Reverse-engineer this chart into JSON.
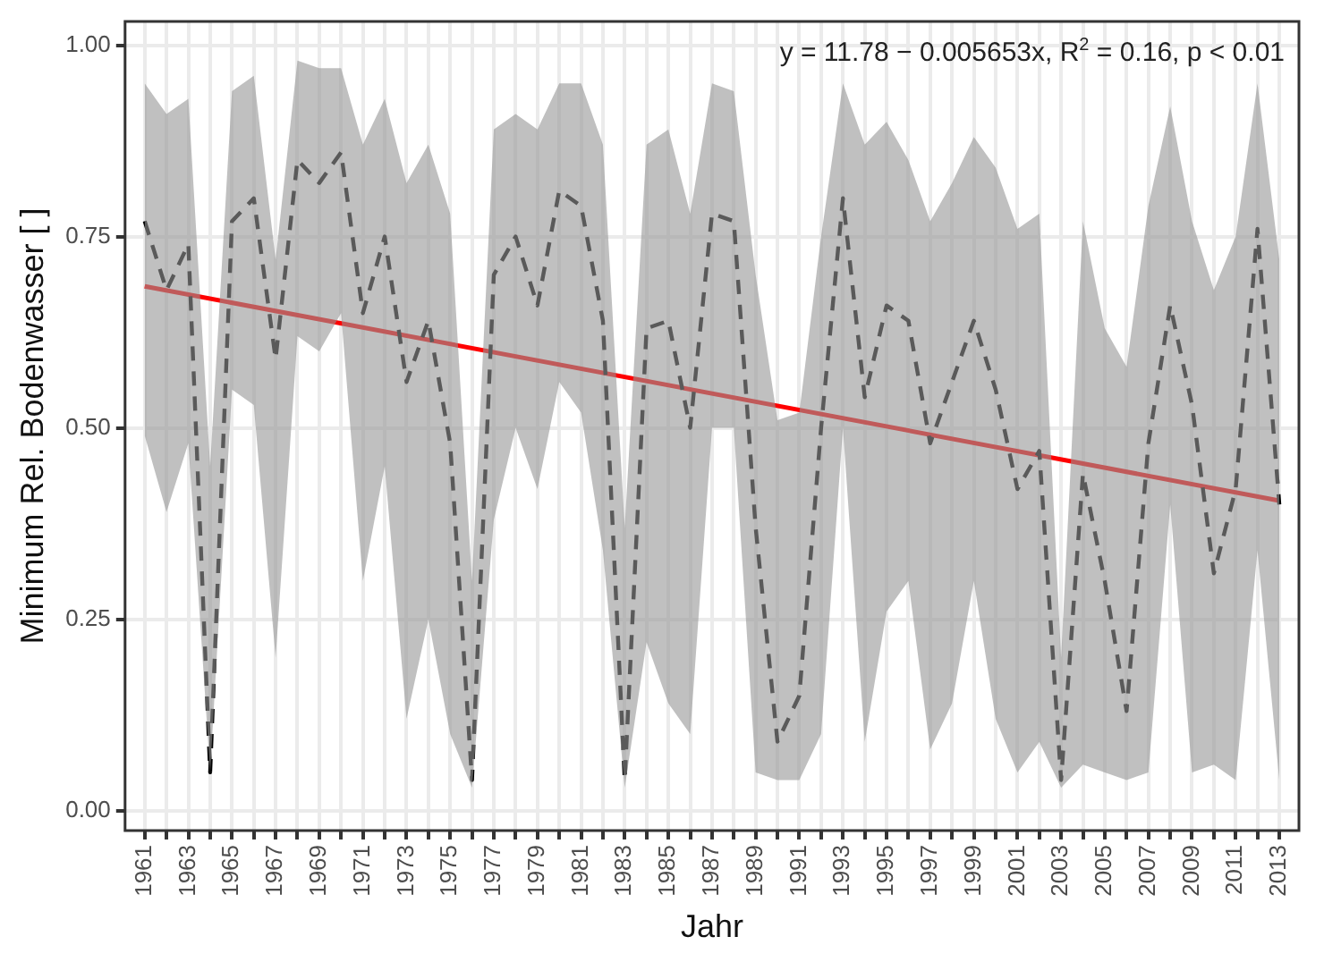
{
  "chart_data": {
    "type": "line",
    "xlabel": "Jahr",
    "ylabel": "Minimum Rel. Bodenwasser [ ]",
    "annotations": [
      "y = 11.78 − 0.005653x, R$^{2}$ = 0.16, p < 0.01"
    ],
    "x": [
      1961,
      1962,
      1963,
      1964,
      1965,
      1966,
      1967,
      1968,
      1969,
      1970,
      1971,
      1972,
      1973,
      1974,
      1975,
      1976,
      1977,
      1978,
      1979,
      1980,
      1981,
      1982,
      1983,
      1984,
      1985,
      1986,
      1987,
      1988,
      1989,
      1990,
      1991,
      1992,
      1993,
      1994,
      1995,
      1996,
      1997,
      1998,
      1999,
      2000,
      2001,
      2002,
      2003,
      2004,
      2005,
      2006,
      2007,
      2008,
      2009,
      2010,
      2011,
      2012,
      2013
    ],
    "series": [
      {
        "color": "#000000",
        "line_style": "dashed",
        "values": [
          0.77,
          0.68,
          0.74,
          0.05,
          0.77,
          0.8,
          0.59,
          0.85,
          0.82,
          0.86,
          0.65,
          0.75,
          0.56,
          0.64,
          0.48,
          0.04,
          0.7,
          0.75,
          0.66,
          0.81,
          0.79,
          0.64,
          0.04,
          0.63,
          0.64,
          0.5,
          0.78,
          0.77,
          0.37,
          0.09,
          0.15,
          0.5,
          0.8,
          0.54,
          0.66,
          0.64,
          0.48,
          0.56,
          0.64,
          0.55,
          0.42,
          0.47,
          0.04,
          0.44,
          0.3,
          0.13,
          0.48,
          0.66,
          0.53,
          0.31,
          0.42,
          0.76,
          0.4
        ],
        "lower": [
          0.49,
          0.39,
          0.48,
          0.05,
          0.55,
          0.53,
          0.2,
          0.62,
          0.6,
          0.65,
          0.3,
          0.45,
          0.12,
          0.25,
          0.1,
          0.03,
          0.38,
          0.5,
          0.42,
          0.56,
          0.52,
          0.34,
          0.03,
          0.22,
          0.14,
          0.1,
          0.5,
          0.5,
          0.05,
          0.04,
          0.04,
          0.1,
          0.5,
          0.09,
          0.26,
          0.3,
          0.08,
          0.14,
          0.3,
          0.12,
          0.05,
          0.09,
          0.03,
          0.06,
          0.05,
          0.04,
          0.05,
          0.4,
          0.05,
          0.06,
          0.04,
          0.34,
          0.04
        ],
        "upper": [
          0.95,
          0.91,
          0.93,
          0.45,
          0.94,
          0.96,
          0.72,
          0.98,
          0.97,
          0.97,
          0.87,
          0.93,
          0.82,
          0.87,
          0.78,
          0.3,
          0.89,
          0.91,
          0.89,
          0.95,
          0.95,
          0.87,
          0.37,
          0.87,
          0.89,
          0.78,
          0.95,
          0.94,
          0.7,
          0.51,
          0.52,
          0.75,
          0.95,
          0.87,
          0.9,
          0.85,
          0.77,
          0.82,
          0.88,
          0.84,
          0.76,
          0.78,
          0.2,
          0.77,
          0.63,
          0.58,
          0.79,
          0.92,
          0.77,
          0.68,
          0.75,
          0.95,
          0.72
        ]
      },
      {
        "type": "line",
        "color": "#ff0000",
        "line_style": "solid",
        "x": [
          1961,
          2013
        ],
        "values": [
          0.685,
          0.405
        ]
      }
    ],
    "xlim": [
      1960.1,
      2013.9
    ],
    "xticks": [
      1961,
      {
        "value": 1962,
        "label": null
      },
      1963,
      {
        "value": 1964,
        "label": null
      },
      1965,
      {
        "value": 1966,
        "label": null
      },
      1967,
      {
        "value": 1968,
        "label": null
      },
      1969,
      {
        "value": 1970,
        "label": null
      },
      1971,
      {
        "value": 1972,
        "label": null
      },
      1973,
      {
        "value": 1974,
        "label": null
      },
      1975,
      {
        "value": 1976,
        "label": null
      },
      1977,
      {
        "value": 1978,
        "label": null
      },
      1979,
      {
        "value": 1980,
        "label": null
      },
      1981,
      {
        "value": 1982,
        "label": null
      },
      1983,
      {
        "value": 1984,
        "label": null
      },
      1985,
      {
        "value": 1986,
        "label": null
      },
      1987,
      {
        "value": 1988,
        "label": null
      },
      1989,
      {
        "value": 1990,
        "label": null
      },
      1991,
      {
        "value": 1992,
        "label": null
      },
      1993,
      {
        "value": 1994,
        "label": null
      },
      1995,
      {
        "value": 1996,
        "label": null
      },
      1997,
      {
        "value": 1998,
        "label": null
      },
      1999,
      {
        "value": 2000,
        "label": null
      },
      2001,
      {
        "value": 2002,
        "label": null
      },
      2003,
      {
        "value": 2004,
        "label": null
      },
      2005,
      {
        "value": 2006,
        "label": null
      },
      2007,
      {
        "value": 2008,
        "label": null
      },
      2009,
      {
        "value": 2010,
        "label": null
      },
      2011,
      {
        "value": 2012,
        "label": null
      },
      2013
    ],
    "ylim": [
      -0.026,
      1.031
    ],
    "yticks": [
      {
        "value": 0,
        "label": "0.00"
      },
      {
        "value": 0.25,
        "label": "0.25"
      },
      {
        "value": 0.5,
        "label": "0.50"
      },
      {
        "value": 0.75,
        "label": "0.75"
      },
      {
        "value": 1,
        "label": "1.00"
      }
    ],
    "grid": true,
    "legend": false,
    "marker": "none"
  }
}
